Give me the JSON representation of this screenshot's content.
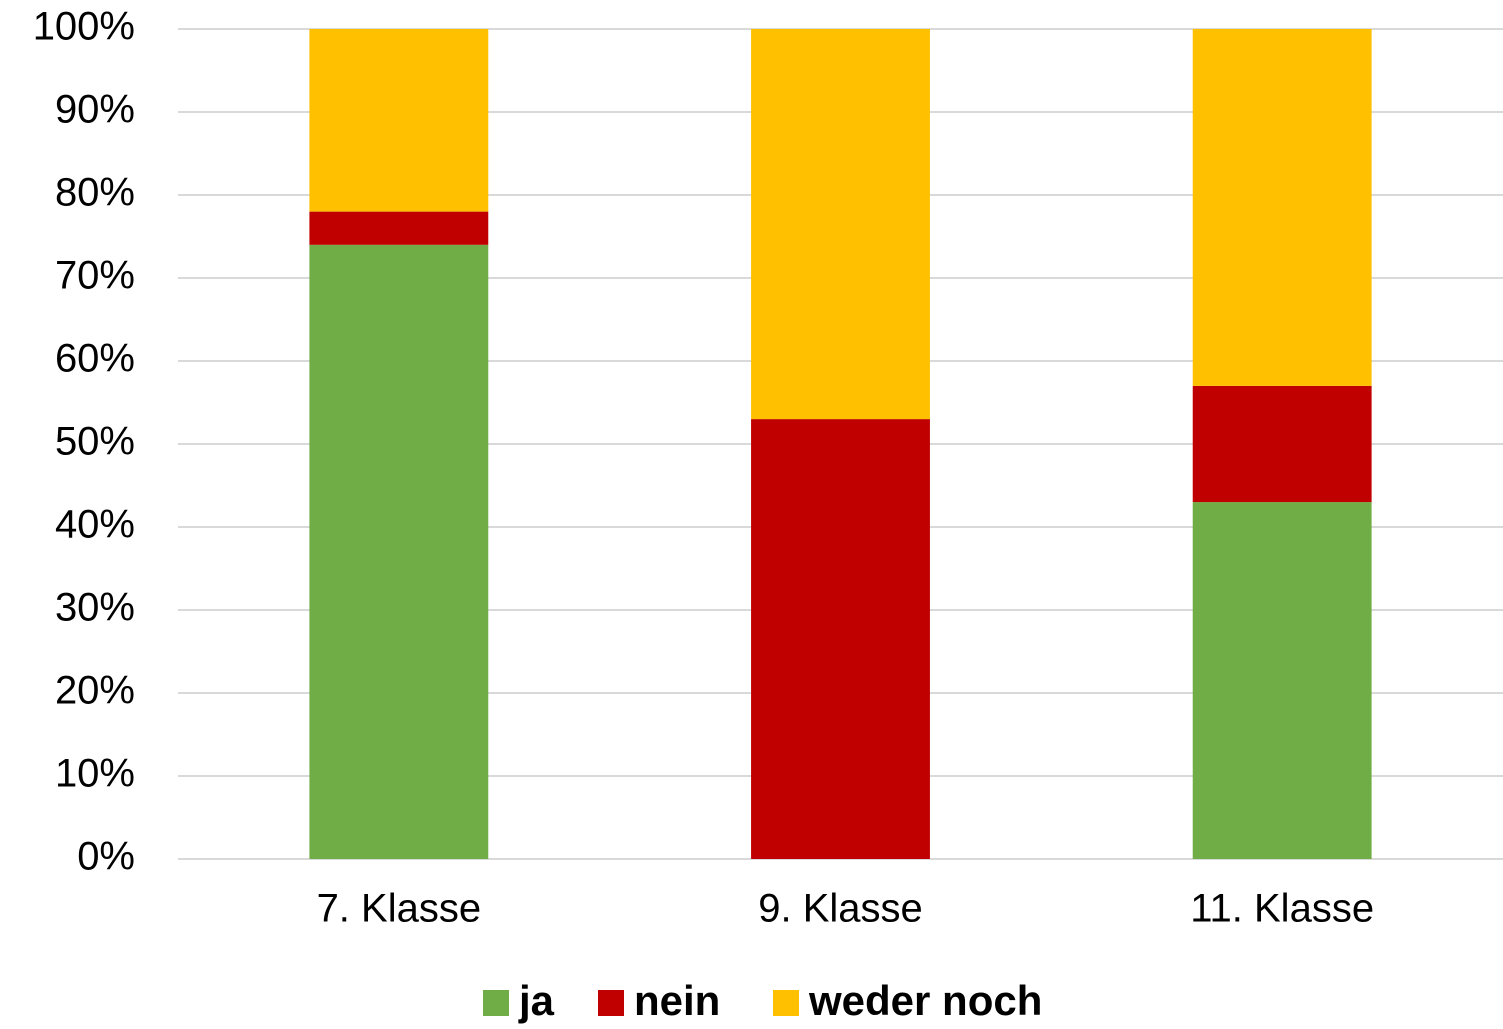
{
  "chart_data": {
    "type": "stacked_bar",
    "categories": [
      "7. Klasse",
      "9. Klasse",
      "11. Klasse"
    ],
    "series": [
      {
        "name": "ja",
        "color": "#70ad47",
        "values": [
          74,
          0,
          43
        ]
      },
      {
        "name": "nein",
        "color": "#c00000",
        "values": [
          4,
          53,
          14
        ]
      },
      {
        "name": "weder noch",
        "color": "#ffc000",
        "values": [
          22,
          47,
          43
        ]
      }
    ],
    "ylim": [
      0,
      100
    ],
    "yticks": [
      {
        "value": 0,
        "label": "0%"
      },
      {
        "value": 10,
        "label": "10%"
      },
      {
        "value": 20,
        "label": "20%"
      },
      {
        "value": 30,
        "label": "30%"
      },
      {
        "value": 40,
        "label": "40%"
      },
      {
        "value": 50,
        "label": "50%"
      },
      {
        "value": 60,
        "label": "60%"
      },
      {
        "value": 70,
        "label": "70%"
      },
      {
        "value": 80,
        "label": "80%"
      },
      {
        "value": 90,
        "label": "90%"
      },
      {
        "value": 100,
        "label": "100%"
      }
    ],
    "grid": true,
    "legend": "bottom"
  }
}
